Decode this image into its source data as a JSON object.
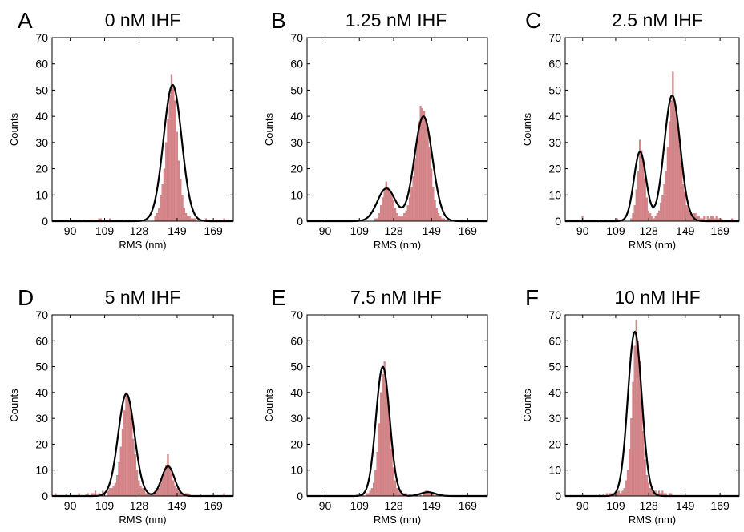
{
  "chart_data": [
    {
      "panel": "A",
      "title": "0 nM IHF",
      "type": "bar",
      "xlabel": "RMS (nm)",
      "ylabel": "Counts",
      "xticks": [
        90,
        109,
        128,
        149,
        169
      ],
      "yticks": [
        0,
        10,
        20,
        30,
        40,
        50,
        60,
        70
      ],
      "xlim": [
        80,
        180
      ],
      "ylim": [
        0,
        70
      ],
      "bin_width": 1,
      "histogram": {
        "x": [
          97,
          102,
          103,
          106,
          107,
          112,
          120,
          125,
          137,
          138,
          139,
          140,
          141,
          142,
          143,
          144,
          145,
          146,
          147,
          148,
          149,
          150,
          151,
          152,
          153,
          154,
          155,
          156,
          157,
          158,
          159,
          161,
          165,
          170,
          171,
          174,
          175
        ],
        "values": [
          0.5,
          0.5,
          0.5,
          1,
          1,
          1,
          0.5,
          0.5,
          2,
          3,
          5,
          10,
          14,
          20,
          30,
          39,
          48,
          56,
          52,
          46,
          34,
          23,
          16,
          10,
          5,
          3,
          2,
          2,
          1,
          1,
          1,
          1,
          1,
          0.5,
          0.5,
          0.5,
          1
        ]
      },
      "fits": [
        {
          "mean": 146.5,
          "sd": 5,
          "amplitude": 52
        }
      ]
    },
    {
      "panel": "B",
      "title": "1.25 nM IHF",
      "type": "bar",
      "xlabel": "RMS (nm)",
      "ylabel": "Counts",
      "xticks": [
        90,
        109,
        128,
        149,
        169
      ],
      "yticks": [
        0,
        10,
        20,
        30,
        40,
        50,
        60,
        70
      ],
      "xlim": [
        80,
        180
      ],
      "ylim": [
        0,
        70
      ],
      "bin_width": 1,
      "histogram": {
        "x": [
          109,
          118,
          119,
          120,
          121,
          122,
          123,
          124,
          125,
          126,
          127,
          128,
          129,
          130,
          131,
          132,
          133,
          134,
          135,
          136,
          137,
          138,
          139,
          140,
          141,
          142,
          143,
          144,
          145,
          146,
          147,
          148,
          149,
          150,
          151,
          152,
          153,
          154,
          155,
          156,
          157,
          158
        ],
        "values": [
          0.5,
          1,
          1,
          3,
          6,
          9,
          12,
          15,
          13,
          12,
          10,
          8,
          5,
          3,
          2,
          2,
          2,
          3,
          4,
          6,
          9,
          13,
          17,
          24,
          31,
          38,
          44,
          43,
          42,
          39,
          34,
          28,
          20,
          13,
          8,
          5,
          3,
          2,
          1,
          1,
          0.5,
          0.5
        ]
      },
      "fits": [
        {
          "mean": 124,
          "sd": 5,
          "amplitude": 12.5
        },
        {
          "mean": 144.5,
          "sd": 5,
          "amplitude": 40
        }
      ]
    },
    {
      "panel": "C",
      "title": "2.5 nM IHF",
      "type": "bar",
      "xlabel": "RMS (nm)",
      "ylabel": "Counts",
      "xticks": [
        90,
        109,
        128,
        149,
        169
      ],
      "yticks": [
        0,
        10,
        20,
        30,
        40,
        50,
        60,
        70
      ],
      "xlim": [
        80,
        180
      ],
      "ylim": [
        0,
        70
      ],
      "bin_width": 1,
      "histogram": {
        "x": [
          82,
          90,
          99,
          105,
          110,
          118,
          119,
          120,
          121,
          122,
          123,
          124,
          125,
          126,
          127,
          128,
          129,
          130,
          131,
          132,
          133,
          134,
          135,
          136,
          137,
          138,
          139,
          140,
          141,
          142,
          143,
          144,
          145,
          146,
          147,
          148,
          149,
          150,
          151,
          152,
          153,
          154,
          155,
          156,
          157,
          158,
          159,
          160,
          162,
          163,
          164,
          165,
          166,
          167,
          168,
          170,
          176
        ],
        "values": [
          0.5,
          2,
          0.5,
          0.5,
          1,
          1,
          3,
          6,
          12,
          19,
          31,
          27,
          23,
          16,
          9,
          4,
          3,
          2,
          1,
          2,
          3,
          4,
          7,
          10,
          14,
          19,
          28,
          38,
          46,
          57,
          45,
          41,
          36,
          29,
          21,
          14,
          11,
          6,
          5,
          3,
          2,
          3,
          3,
          2,
          2,
          1,
          1,
          2,
          2,
          1,
          2,
          2,
          1,
          2,
          1,
          1,
          1
        ]
      },
      "fits": [
        {
          "mean": 123,
          "sd": 3.5,
          "amplitude": 26.5
        },
        {
          "mean": 141.5,
          "sd": 4.6,
          "amplitude": 48
        }
      ]
    },
    {
      "panel": "D",
      "title": "5 nM IHF",
      "type": "bar",
      "xlabel": "RMS (nm)",
      "ylabel": "Counts",
      "xticks": [
        90,
        109,
        128,
        149,
        169
      ],
      "yticks": [
        0,
        10,
        20,
        30,
        40,
        50,
        60,
        70
      ],
      "xlim": [
        80,
        180
      ],
      "ylim": [
        0,
        70
      ],
      "bin_width": 1,
      "histogram": {
        "x": [
          82,
          88,
          95,
          99,
          100,
          102,
          103,
          104,
          106,
          108,
          109,
          111,
          112,
          113,
          114,
          115,
          116,
          117,
          118,
          119,
          120,
          121,
          122,
          123,
          124,
          125,
          126,
          127,
          128,
          129,
          130,
          131,
          132,
          133,
          134,
          135,
          136,
          137,
          138,
          139,
          140,
          141,
          142,
          143,
          144,
          145,
          146,
          147,
          148,
          149,
          150,
          151,
          152,
          153,
          154,
          155,
          156,
          162,
          175
        ],
        "values": [
          1,
          0.5,
          1,
          0.5,
          1,
          1,
          1,
          2,
          1,
          2,
          1,
          2,
          3,
          3,
          4,
          5,
          8,
          13,
          19,
          26,
          33,
          40,
          38,
          35,
          30,
          22,
          16,
          10,
          6,
          4,
          3,
          2,
          1,
          1,
          1,
          1,
          1,
          2,
          3,
          3,
          5,
          7,
          9,
          12,
          16,
          11,
          9,
          6,
          4,
          3,
          2,
          1,
          1,
          1,
          1,
          1,
          0.5,
          0.5,
          1
        ]
      },
      "fits": [
        {
          "mean": 121,
          "sd": 4.5,
          "amplitude": 39.5
        },
        {
          "mean": 144,
          "sd": 3.5,
          "amplitude": 11.5
        }
      ]
    },
    {
      "panel": "E",
      "title": "7.5 nM IHF",
      "type": "bar",
      "xlabel": "RMS (nm)",
      "ylabel": "Counts",
      "xticks": [
        90,
        109,
        128,
        149,
        169
      ],
      "yticks": [
        0,
        10,
        20,
        30,
        40,
        50,
        60,
        70
      ],
      "xlim": [
        80,
        180
      ],
      "ylim": [
        0,
        70
      ],
      "bin_width": 1,
      "histogram": {
        "x": [
          108,
          111,
          113,
          114,
          115,
          116,
          117,
          118,
          119,
          120,
          121,
          122,
          123,
          124,
          125,
          126,
          127,
          128,
          129,
          130,
          131,
          132,
          133,
          134,
          135,
          137,
          140,
          143,
          145,
          146,
          147,
          148,
          149,
          150,
          152,
          155
        ],
        "values": [
          0.5,
          0.5,
          1,
          1,
          2,
          3,
          5,
          10,
          17,
          28,
          40,
          47,
          52,
          45,
          38,
          28,
          18,
          11,
          6,
          3,
          2,
          1,
          1,
          1,
          1,
          0.5,
          0.5,
          1,
          1,
          2,
          2,
          1,
          1,
          1,
          0.5,
          0.5
        ]
      },
      "fits": [
        {
          "mean": 122,
          "sd": 3.8,
          "amplitude": 50
        },
        {
          "mean": 147,
          "sd": 4,
          "amplitude": 1.5
        }
      ]
    },
    {
      "panel": "F",
      "title": "10 nM IHF",
      "type": "bar",
      "xlabel": "RMS (nm)",
      "ylabel": "Counts",
      "xticks": [
        90,
        109,
        128,
        149,
        169
      ],
      "yticks": [
        0,
        10,
        20,
        30,
        40,
        50,
        60,
        70
      ],
      "xlim": [
        80,
        180
      ],
      "ylim": [
        0,
        70
      ],
      "bin_width": 1,
      "histogram": {
        "x": [
          100,
          102,
          104,
          106,
          107,
          108,
          109,
          110,
          111,
          112,
          113,
          114,
          115,
          116,
          117,
          118,
          119,
          120,
          121,
          122,
          123,
          124,
          125,
          126,
          127,
          128,
          129,
          130,
          131,
          132,
          133,
          134,
          135,
          136,
          137,
          138,
          140,
          141
        ],
        "values": [
          0.5,
          0.5,
          1,
          1,
          1,
          1,
          1,
          2,
          2,
          1,
          2,
          3,
          6,
          10,
          18,
          30,
          44,
          58,
          68,
          60,
          52,
          38,
          25,
          14,
          8,
          5,
          3,
          3,
          2,
          2,
          1,
          2,
          1,
          2,
          1,
          1,
          1,
          1
        ]
      },
      "fits": [
        {
          "mean": 120,
          "sd": 4,
          "amplitude": 63.5
        }
      ]
    }
  ]
}
